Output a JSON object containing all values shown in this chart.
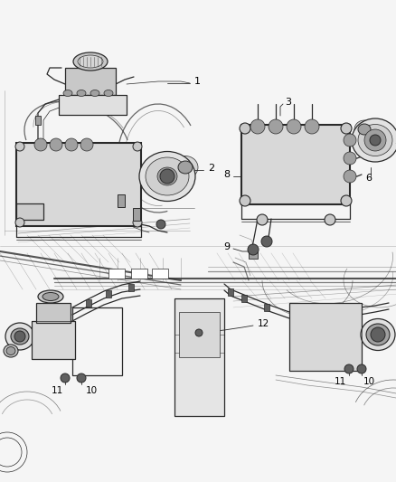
{
  "background_color": "#f5f5f5",
  "fig_width": 4.38,
  "fig_height": 5.33,
  "dpi": 100,
  "line_color": "#2a2a2a",
  "light_gray": "#c8c8c8",
  "mid_gray": "#a0a0a0",
  "dark_gray": "#606060",
  "label_color": "#000000",
  "label_fontsize": 7.5,
  "lw_thin": 0.5,
  "lw_med": 0.9,
  "lw_thick": 1.5
}
